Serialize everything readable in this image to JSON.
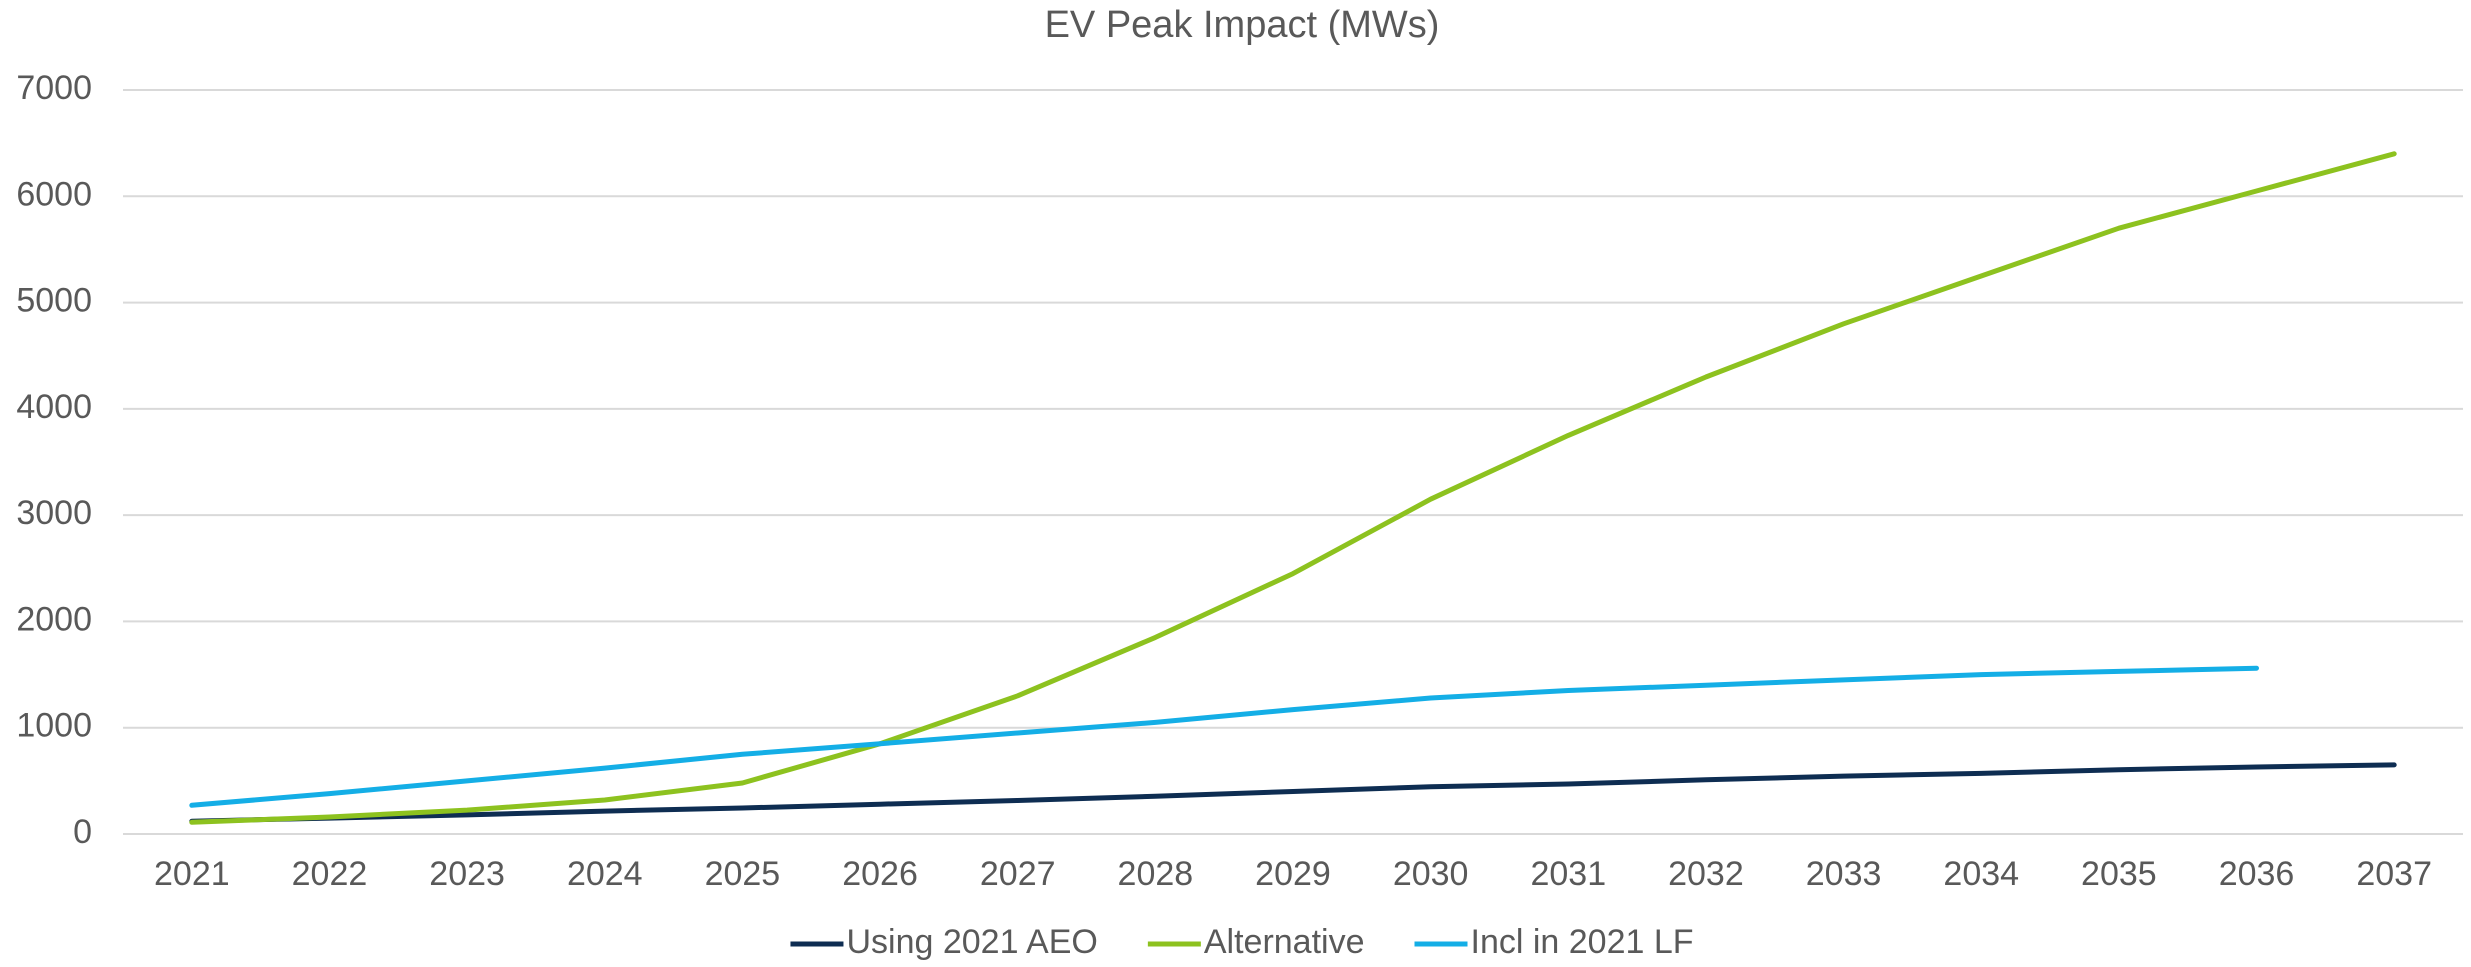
{
  "chart_data": {
    "type": "line",
    "title": "EV Peak Impact (MWs)",
    "categories": [
      "2021",
      "2022",
      "2023",
      "2024",
      "2025",
      "2026",
      "2027",
      "2028",
      "2029",
      "2030",
      "2031",
      "2032",
      "2033",
      "2034",
      "2035",
      "2036",
      "2037"
    ],
    "series": [
      {
        "name": "Using 2021 AEO",
        "color": "#0e2d52",
        "values": [
          120,
          150,
          180,
          215,
          245,
          280,
          315,
          355,
          400,
          445,
          470,
          510,
          545,
          570,
          605,
          630,
          650
        ]
      },
      {
        "name": "Alternative",
        "color": "#8dc21f",
        "values": [
          110,
          160,
          225,
          320,
          480,
          850,
          1300,
          1850,
          2450,
          3150,
          3750,
          4300,
          4800,
          5250,
          5700,
          6050,
          6400
        ]
      },
      {
        "name": "Incl in 2021 LF",
        "color": "#14aee6",
        "values": [
          270,
          380,
          500,
          620,
          750,
          850,
          950,
          1050,
          1170,
          1280,
          1350,
          1400,
          1450,
          1500,
          1530,
          1560,
          null
        ]
      }
    ],
    "ylim": [
      0,
      7000
    ],
    "yticks": [
      0,
      1000,
      2000,
      3000,
      4000,
      5000,
      6000,
      7000
    ],
    "grid": true,
    "legend": "bottom"
  }
}
